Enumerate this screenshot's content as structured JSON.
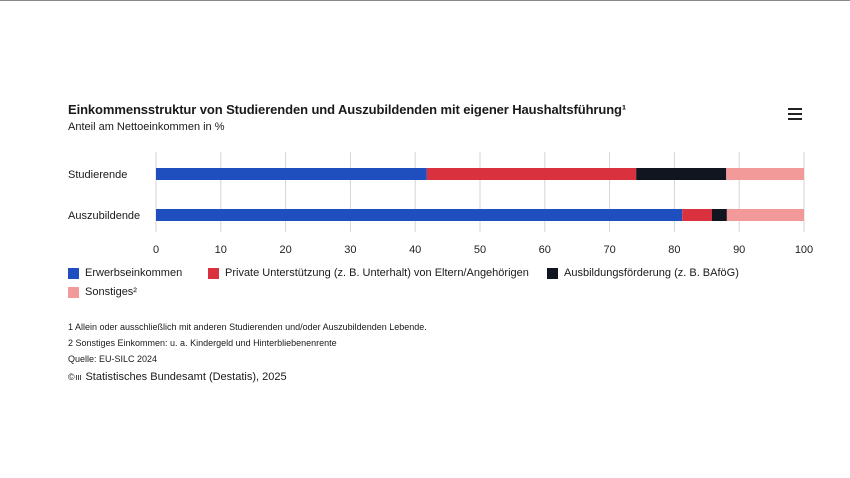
{
  "title": "Einkommensstruktur von Studierenden und Auszubildenden mit eigener Haushaltsführung¹",
  "subtitle": "Anteil am Nettoeinkommen in %",
  "menu_icon": "hamburger-menu-icon",
  "chart_data": {
    "type": "bar",
    "orientation": "horizontal",
    "stacked": true,
    "categories": [
      "Studierende",
      "Auszubildende"
    ],
    "series": [
      {
        "name": "Erwerbseinkommen",
        "color": "#1f4fbf",
        "values": [
          41.8,
          81.2
        ]
      },
      {
        "name": "Private Unterstützung (z. B. Unterhalt) von Eltern/Angehörigen",
        "color": "#d9313e",
        "values": [
          32.3,
          4.6
        ]
      },
      {
        "name": "Ausbildungsförderung (z. B. BAföG)",
        "color": "#11151f",
        "values": [
          13.9,
          2.3
        ]
      },
      {
        "name": "Sonstiges²",
        "color": "#f29a9a",
        "values": [
          12.0,
          11.9
        ]
      }
    ],
    "xlim": [
      0,
      100
    ],
    "xticks": [
      "0",
      "10",
      "20",
      "30",
      "40",
      "50",
      "60",
      "70",
      "80",
      "90",
      "100"
    ],
    "grid": true,
    "legend_position": "bottom"
  },
  "notes": [
    "1 Allein oder ausschließlich mit anderen Studierenden und/oder Auszubildenden Lebende.",
    "2 Sonstiges Einkommen: u. a. Kindergeld und Hinterbliebenenrente",
    "Quelle: EU-SILC 2024"
  ],
  "credit": {
    "icon": "copyright-destatis-icon",
    "icon_text": "© ııı",
    "text": "Statistisches Bundesamt (Destatis), 2025"
  }
}
